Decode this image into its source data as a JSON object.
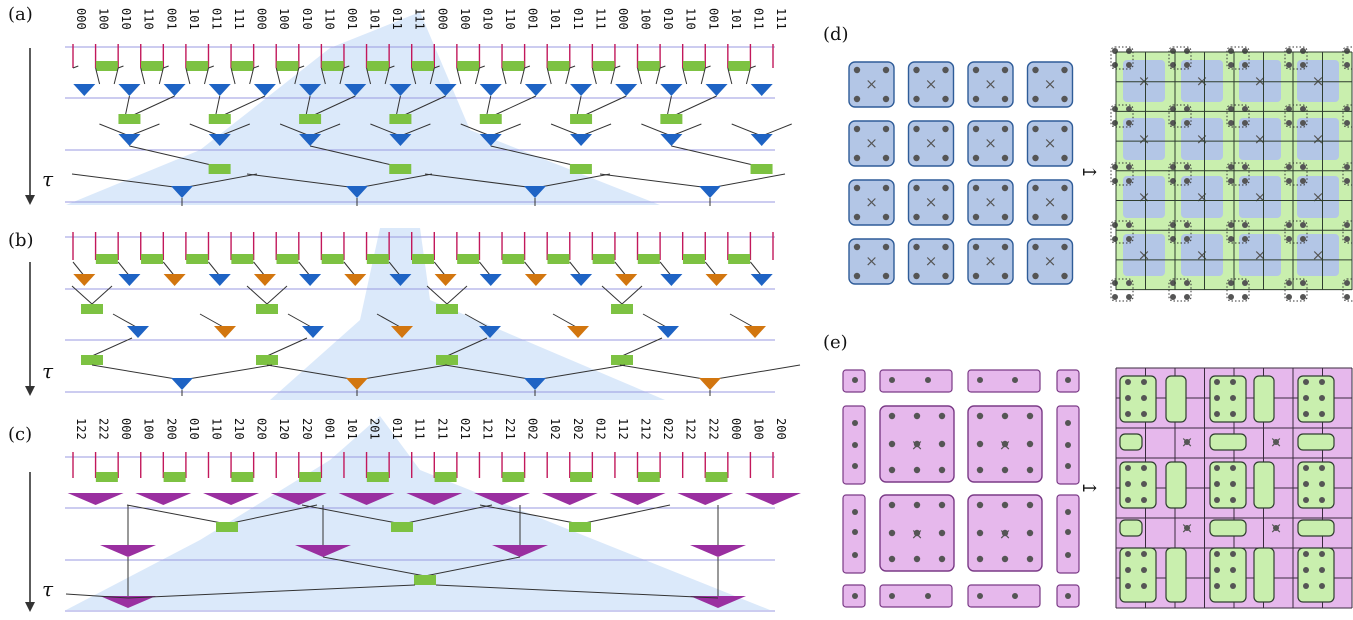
{
  "panels": {
    "a": {
      "label": "(a)",
      "time_label": "τ",
      "codes": [
        "000",
        "100",
        "010",
        "110",
        "001",
        "101",
        "011",
        "111",
        "000",
        "100",
        "010",
        "110",
        "001",
        "101",
        "011",
        "111",
        "000",
        "100",
        "010",
        "110",
        "001",
        "101",
        "011",
        "111",
        "000",
        "100",
        "010",
        "110",
        "001",
        "101",
        "011",
        "111"
      ]
    },
    "b": {
      "label": "(b)",
      "time_label": "τ"
    },
    "c": {
      "label": "(c)",
      "time_label": "τ",
      "codes": [
        "122",
        "222",
        "000",
        "100",
        "200",
        "010",
        "110",
        "210",
        "020",
        "120",
        "220",
        "001",
        "101",
        "201",
        "011",
        "111",
        "211",
        "021",
        "121",
        "221",
        "002",
        "102",
        "202",
        "012",
        "112",
        "212",
        "022",
        "122",
        "222",
        "000",
        "100",
        "200"
      ]
    },
    "d": {
      "label": "(d)",
      "arrow": "↦"
    },
    "e": {
      "label": "(e)",
      "arrow": "↦"
    }
  },
  "colors": {
    "disentangler": "#7dc242",
    "isometry_blue": "#1e63c4",
    "isometry_orange": "#d2760f",
    "isometry_purple": "#9a2fa0",
    "leg": "#c2185b",
    "wire": "#333333",
    "layer_line": "#9a9ae0",
    "cone": "#cfe2f8",
    "tile_blue": "#b3c6e6",
    "tile_blue_border": "#2f5c98",
    "tile_green": "#c9efae",
    "tile_pink": "#e6b8ec",
    "tile_pink_border": "#7a3a86",
    "dot": "#555555"
  }
}
